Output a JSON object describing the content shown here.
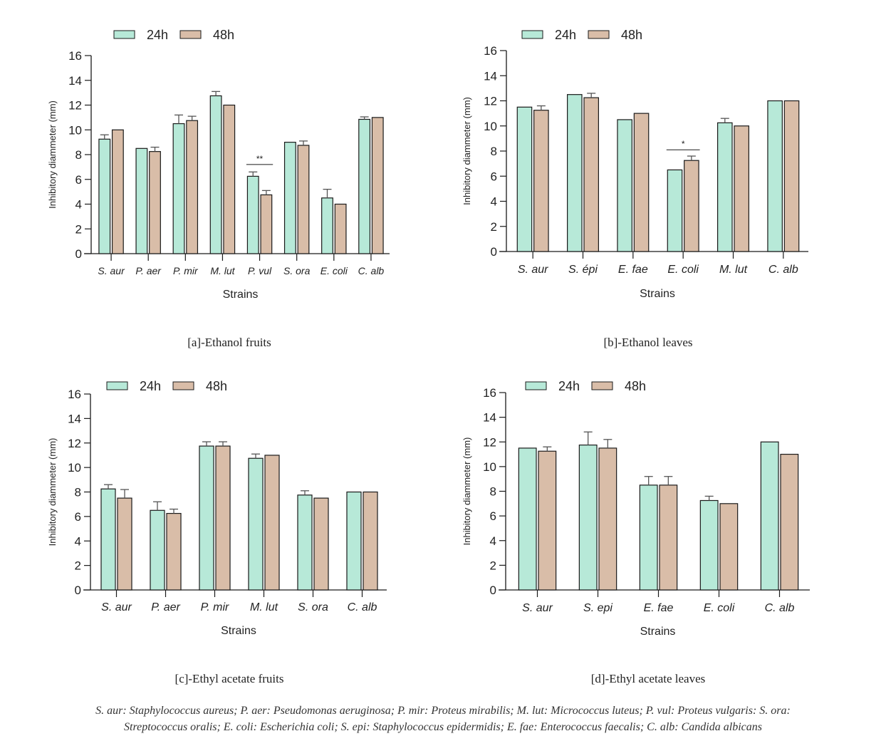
{
  "colors": {
    "h24": "#b7e9d8",
    "h48": "#d9bda8",
    "stroke": "#1a1a1a",
    "err": "#555555"
  },
  "chart_data": [
    {
      "id": "a",
      "type": "bar",
      "caption": "[a]-Ethanol fruits",
      "xlabel": "Strains",
      "ylabel": "Inhibitory diammeter (mm)",
      "ylim": [
        0,
        16
      ],
      "yticks": [
        0,
        2,
        4,
        6,
        8,
        10,
        12,
        14,
        16
      ],
      "legend": [
        "24h",
        "48h"
      ],
      "legend_position": "top",
      "categories": [
        "S. aur",
        "P. aer",
        "P. mir",
        "M. lut",
        "P. vul",
        "S. ora",
        "E. coli",
        "C. alb"
      ],
      "series": [
        {
          "name": "24h",
          "values": [
            9.25,
            8.5,
            10.5,
            12.75,
            6.25,
            9.0,
            4.5,
            10.85
          ],
          "errors": [
            0.35,
            0,
            0.7,
            0.35,
            0.35,
            0,
            0.7,
            0.2
          ]
        },
        {
          "name": "48h",
          "values": [
            10.0,
            8.25,
            10.75,
            12.0,
            4.75,
            8.75,
            4.0,
            11.0
          ],
          "errors": [
            0,
            0.35,
            0.35,
            0,
            0.35,
            0.35,
            0,
            0
          ]
        }
      ],
      "annotations": [
        {
          "category": "P. vul",
          "text": "**",
          "y": 7.2
        }
      ]
    },
    {
      "id": "b",
      "type": "bar",
      "caption": "[b]-Ethanol leaves",
      "xlabel": "Strains",
      "ylabel": "Inhibitory diammeter (mm)",
      "ylim": [
        0,
        16
      ],
      "yticks": [
        0,
        2,
        4,
        6,
        8,
        10,
        12,
        14,
        16
      ],
      "legend": [
        "24h",
        "48h"
      ],
      "legend_position": "top",
      "categories": [
        "S. aur",
        "S. épi",
        "E. fae",
        "E. coli",
        "M. lut",
        "C. alb"
      ],
      "series": [
        {
          "name": "24h",
          "values": [
            11.5,
            12.5,
            10.5,
            6.5,
            10.25,
            12.0
          ],
          "errors": [
            0,
            0,
            0,
            0,
            0.35,
            0
          ]
        },
        {
          "name": "48h",
          "values": [
            11.25,
            12.25,
            11.0,
            7.25,
            10.0,
            12.0
          ],
          "errors": [
            0.35,
            0.35,
            0,
            0.35,
            0,
            0
          ]
        }
      ],
      "annotations": [
        {
          "category": "E. coli",
          "text": "*",
          "y": 8.1
        }
      ]
    },
    {
      "id": "c",
      "type": "bar",
      "caption": "[c]-Ethyl acetate fruits",
      "xlabel": "Strains",
      "ylabel": "Inhibitory diammeter (mm)",
      "ylim": [
        0,
        16
      ],
      "yticks": [
        0,
        2,
        4,
        6,
        8,
        10,
        12,
        14,
        16
      ],
      "legend": [
        "24h",
        "48h"
      ],
      "legend_position": "top",
      "categories": [
        "S. aur",
        "P. aer",
        "P. mir",
        "M. lut",
        "S. ora",
        "C. alb"
      ],
      "series": [
        {
          "name": "24h",
          "values": [
            8.25,
            6.5,
            11.75,
            10.75,
            7.75,
            8.0
          ],
          "errors": [
            0.35,
            0.7,
            0.35,
            0.35,
            0.35,
            0
          ]
        },
        {
          "name": "48h",
          "values": [
            7.5,
            6.25,
            11.75,
            11.0,
            7.5,
            8.0
          ],
          "errors": [
            0.7,
            0.35,
            0.35,
            0,
            0,
            0
          ]
        }
      ],
      "annotations": []
    },
    {
      "id": "d",
      "type": "bar",
      "caption": "[d]-Ethyl acetate leaves",
      "xlabel": "Strains",
      "ylabel": "Inhibitory diammeter (mm)",
      "ylim": [
        0,
        16
      ],
      "yticks": [
        0,
        2,
        4,
        6,
        8,
        10,
        12,
        14,
        16
      ],
      "legend": [
        "24h",
        "48h"
      ],
      "legend_position": "top",
      "categories": [
        "S. aur",
        "S. epi",
        "E. fae",
        "E. coli",
        "C. alb"
      ],
      "series": [
        {
          "name": "24h",
          "values": [
            11.5,
            11.75,
            8.5,
            7.25,
            12.0
          ],
          "errors": [
            0,
            1.06,
            0.7,
            0.35,
            0
          ]
        },
        {
          "name": "48h",
          "values": [
            11.25,
            11.5,
            8.5,
            7.0,
            11.0
          ],
          "errors": [
            0.35,
            0.7,
            0.7,
            0,
            0
          ]
        }
      ],
      "annotations": []
    }
  ],
  "footnote": {
    "line1": "S. aur: Staphylococcus aureus; P. aer: Pseudomonas aeruginosa; P. mir: Proteus mirabilis; M. lut: Micrococcus luteus; P. vul: Proteus vulgaris: S. ora:",
    "line2": "Streptococcus oralis; E. coli: Escherichia coli; S. epi: Staphylococcus epidermidis; E. fae: Enterococcus faecalis; C. alb: Candida albicans"
  }
}
